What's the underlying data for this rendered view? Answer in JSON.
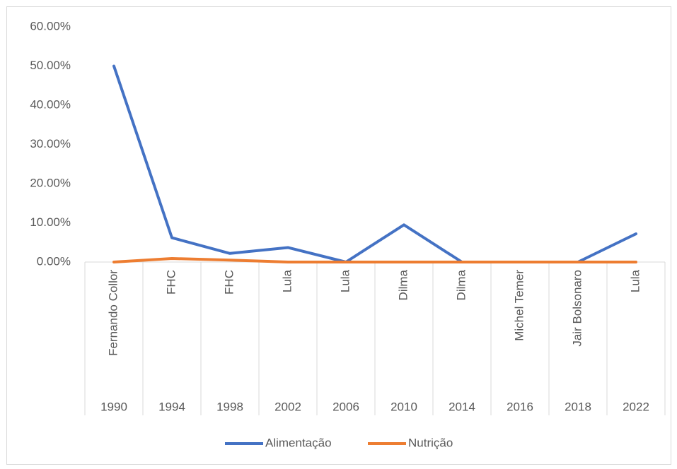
{
  "chart_data": {
    "type": "line",
    "categories": [
      "1990",
      "1994",
      "1998",
      "2002",
      "2006",
      "2010",
      "2014",
      "2016",
      "2018",
      "2022"
    ],
    "category_groups": [
      "Fernando Collor",
      "FHC",
      "FHC",
      "Lula",
      "Lula",
      "Dilma",
      "Dilma",
      "Michel Temer",
      "Jair Bolsonaro",
      "Lula"
    ],
    "series": [
      {
        "name": "Alimentação",
        "color": "#4472c4",
        "values": [
          50,
          6.2,
          2.2,
          3.7,
          0,
          9.5,
          0,
          0,
          0,
          7.2
        ]
      },
      {
        "name": "Nutrição",
        "color": "#ed7d31",
        "values": [
          0,
          0.9,
          0.5,
          0,
          0,
          0,
          0,
          0,
          0,
          0
        ]
      }
    ],
    "ylim": [
      0,
      60
    ],
    "yticks": [
      {
        "value": 0,
        "label": "0.00%"
      },
      {
        "value": 10,
        "label": "10.00%"
      },
      {
        "value": 20,
        "label": "20.00%"
      },
      {
        "value": 30,
        "label": "30.00%"
      },
      {
        "value": 40,
        "label": "40.00%"
      },
      {
        "value": 50,
        "label": "50.00%"
      },
      {
        "value": 60,
        "label": "60.00%"
      }
    ],
    "grid": false,
    "legend": "bottom"
  }
}
